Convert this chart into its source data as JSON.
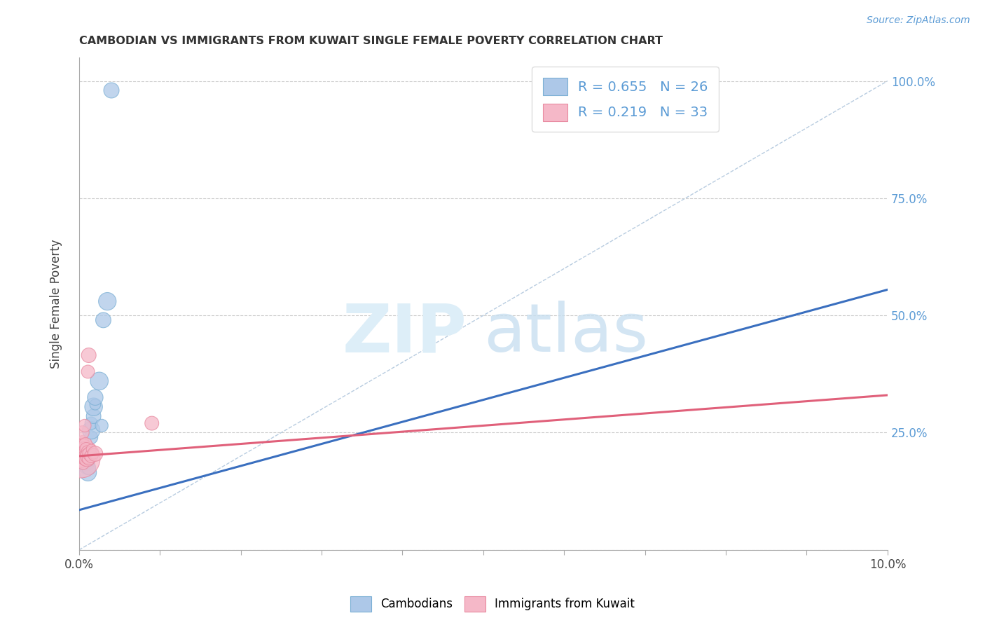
{
  "title": "CAMBODIAN VS IMMIGRANTS FROM KUWAIT SINGLE FEMALE POVERTY CORRELATION CHART",
  "source": "Source: ZipAtlas.com",
  "ylabel": "Single Female Poverty",
  "legend_label1": "Cambodians",
  "legend_label2": "Immigrants from Kuwait",
  "r1": 0.655,
  "n1": 26,
  "r2": 0.219,
  "n2": 33,
  "blue_color": "#adc8e8",
  "blue_edge": "#7aafd4",
  "pink_color": "#f5b8c8",
  "pink_edge": "#e88aa0",
  "blue_line_color": "#3a6fbf",
  "pink_line_color": "#e0607a",
  "ref_line_color": "#b8cce0",
  "cambodian_points": [
    [
      0.0003,
      0.195
    ],
    [
      0.0003,
      0.215
    ],
    [
      0.0004,
      0.205
    ],
    [
      0.0005,
      0.185
    ],
    [
      0.0005,
      0.2
    ],
    [
      0.0006,
      0.21
    ],
    [
      0.0008,
      0.185
    ],
    [
      0.0008,
      0.195
    ],
    [
      0.0009,
      0.175
    ],
    [
      0.001,
      0.185
    ],
    [
      0.001,
      0.2
    ],
    [
      0.0011,
      0.165
    ],
    [
      0.0012,
      0.175
    ],
    [
      0.0012,
      0.19
    ],
    [
      0.0015,
      0.24
    ],
    [
      0.0015,
      0.255
    ],
    [
      0.0015,
      0.27
    ],
    [
      0.0018,
      0.285
    ],
    [
      0.0018,
      0.305
    ],
    [
      0.002,
      0.31
    ],
    [
      0.002,
      0.325
    ],
    [
      0.0025,
      0.36
    ],
    [
      0.0028,
      0.265
    ],
    [
      0.003,
      0.49
    ],
    [
      0.0035,
      0.53
    ],
    [
      0.004,
      0.98
    ]
  ],
  "kuwait_points": [
    [
      0.0002,
      0.195
    ],
    [
      0.0002,
      0.21
    ],
    [
      0.0002,
      0.225
    ],
    [
      0.0003,
      0.19
    ],
    [
      0.0003,
      0.205
    ],
    [
      0.0004,
      0.215
    ],
    [
      0.0004,
      0.23
    ],
    [
      0.0004,
      0.25
    ],
    [
      0.0005,
      0.185
    ],
    [
      0.0005,
      0.2
    ],
    [
      0.0005,
      0.22
    ],
    [
      0.0006,
      0.2
    ],
    [
      0.0006,
      0.215
    ],
    [
      0.0007,
      0.195
    ],
    [
      0.0007,
      0.21
    ],
    [
      0.0007,
      0.265
    ],
    [
      0.0008,
      0.195
    ],
    [
      0.0008,
      0.21
    ],
    [
      0.0008,
      0.225
    ],
    [
      0.0009,
      0.2
    ],
    [
      0.0009,
      0.215
    ],
    [
      0.001,
      0.195
    ],
    [
      0.001,
      0.21
    ],
    [
      0.0011,
      0.2
    ],
    [
      0.0011,
      0.38
    ],
    [
      0.0012,
      0.195
    ],
    [
      0.0012,
      0.415
    ],
    [
      0.0013,
      0.205
    ],
    [
      0.0015,
      0.2
    ],
    [
      0.0015,
      0.215
    ],
    [
      0.0018,
      0.205
    ],
    [
      0.002,
      0.205
    ],
    [
      0.009,
      0.27
    ]
  ],
  "xlim": [
    0,
    0.1
  ],
  "ylim": [
    0,
    1.05
  ],
  "xticks": [
    0.0,
    0.01,
    0.02,
    0.03,
    0.04,
    0.05,
    0.06,
    0.07,
    0.08,
    0.09,
    0.1
  ],
  "yticks": [
    0.0,
    0.25,
    0.5,
    0.75,
    1.0
  ],
  "blue_line_x": [
    0.0,
    0.1
  ],
  "blue_line_y": [
    0.085,
    0.555
  ],
  "pink_line_x": [
    0.0,
    0.1
  ],
  "pink_line_y": [
    0.2,
    0.33
  ],
  "ref_line_x": [
    0.0,
    0.1
  ],
  "ref_line_y": [
    0.0,
    1.0
  ],
  "cam_big_point": [
    0.0002,
    0.195
  ],
  "cam_big_size": 1200,
  "kuw_big_point": [
    0.0002,
    0.205
  ],
  "kuw_big_size": 1600
}
